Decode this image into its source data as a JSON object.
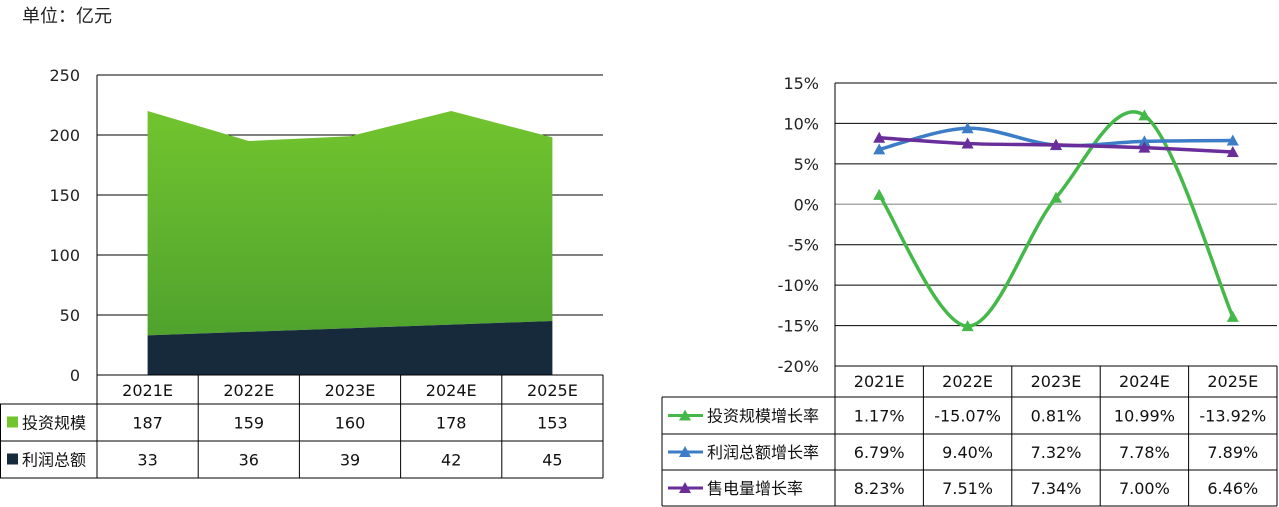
{
  "unit_label": "单位：亿元",
  "colors": {
    "green_top": "#72c42e",
    "green_bottom": "#4fa32d",
    "navy": "#172a3c",
    "line_green": "#45b84a",
    "line_blue": "#3d7cc6",
    "line_purple": "#6a2e9a"
  },
  "chart_data": [
    {
      "type": "area",
      "stacked": true,
      "categories": [
        "2021E",
        "2022E",
        "2023E",
        "2024E",
        "2025E"
      ],
      "series": [
        {
          "name": "利润总额",
          "values": [
            33,
            36,
            39,
            42,
            45
          ],
          "color": "#172a3c"
        },
        {
          "name": "投资规模",
          "values": [
            187,
            159,
            160,
            178,
            153
          ],
          "color": "#5fb52e"
        }
      ],
      "ylim": [
        0,
        250
      ],
      "yticks": [
        "0",
        "50",
        "100",
        "150",
        "200",
        "250"
      ],
      "grid": true,
      "legend": "data-table"
    },
    {
      "type": "line",
      "categories": [
        "2021E",
        "2022E",
        "2023E",
        "2024E",
        "2025E"
      ],
      "series": [
        {
          "name": "投资规模增长率",
          "values": [
            1.17,
            -15.07,
            0.81,
            10.99,
            -13.92
          ],
          "labels": [
            "1.17%",
            "-15.07%",
            "0.81%",
            "10.99%",
            "-13.92%"
          ],
          "color": "#45b84a"
        },
        {
          "name": "利润总额增长率",
          "values": [
            6.79,
            9.4,
            7.32,
            7.78,
            7.89
          ],
          "labels": [
            "6.79%",
            "9.40%",
            "7.32%",
            "7.78%",
            "7.89%"
          ],
          "color": "#3d7cc6"
        },
        {
          "name": "售电量增长率",
          "values": [
            8.23,
            7.51,
            7.34,
            7.0,
            6.46
          ],
          "labels": [
            "8.23%",
            "7.51%",
            "7.34%",
            "7.00%",
            "6.46%"
          ],
          "color": "#6a2e9a"
        }
      ],
      "ylim": [
        -20,
        15
      ],
      "yticks": [
        "-20%",
        "-15%",
        "-10%",
        "-5%",
        "0%",
        "5%",
        "10%",
        "15%"
      ],
      "grid": true,
      "legend": "data-table"
    }
  ]
}
